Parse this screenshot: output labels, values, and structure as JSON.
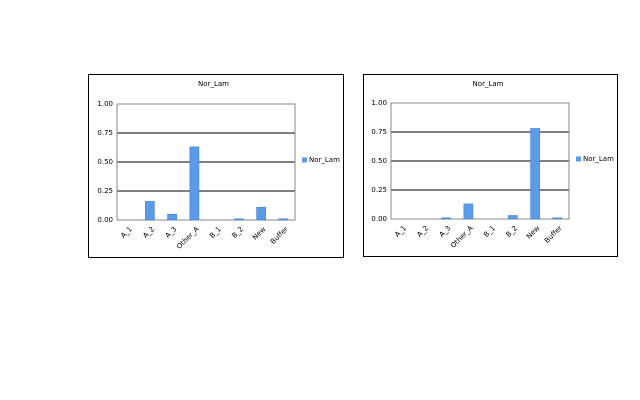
{
  "chart_data": [
    {
      "type": "bar",
      "title": "Nor_Lam",
      "categories": [
        "A_1",
        "A_2",
        "A_3",
        "Other_A",
        "B_1",
        "B_2",
        "New",
        "Buffer"
      ],
      "series": [
        {
          "name": "Nor_Lam",
          "color": "#5b9bea",
          "values": [
            0,
            0.16,
            0.05,
            0.63,
            0,
            0.01,
            0.11,
            0.01
          ]
        }
      ],
      "ylim": [
        0,
        1
      ],
      "yticks": [
        {
          "value": 0,
          "label": "0.00"
        },
        0.25,
        {
          "value": 0.5,
          "label": "0.50"
        },
        0.75,
        {
          "value": 1,
          "label": "1.00"
        }
      ],
      "grid": true,
      "legend": "right"
    },
    {
      "type": "bar",
      "title": "Nor_Lam",
      "categories": [
        "A_1",
        "A_2",
        "A_3",
        "Other_A",
        "B_1",
        "B_2",
        "New",
        "Buffer"
      ],
      "series": [
        {
          "name": "Nor_Lam",
          "color": "#5b9bea",
          "values": [
            0,
            0,
            0.01,
            0.13,
            0,
            0.03,
            0.78,
            0.01
          ]
        }
      ],
      "ylim": [
        0,
        1
      ],
      "yticks": [
        {
          "value": 0,
          "label": "0.00"
        },
        0.25,
        {
          "value": 0.5,
          "label": "0.50"
        },
        0.75,
        {
          "value": 1,
          "label": "1.00"
        }
      ],
      "grid": true,
      "legend": "right"
    }
  ]
}
